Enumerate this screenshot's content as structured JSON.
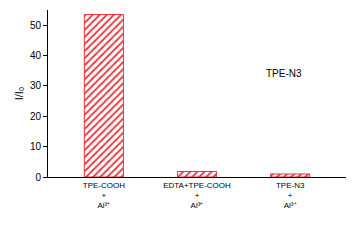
{
  "chart_data": {
    "type": "bar",
    "y_label": "I/I₀",
    "categories": [
      "TPE-COOH\n+\nAl³⁺",
      "EDTA+TPE-COOH\n+\nAl³⁺",
      "TPE-N3\n+\nAl³⁺"
    ],
    "values": [
      53.5,
      1.8,
      1.0
    ],
    "color": "#e8333c",
    "marker": "hatched",
    "ylim": [
      0,
      55
    ],
    "yticks": [
      0,
      10,
      20,
      30,
      40,
      50
    ],
    "grid": false,
    "annotations": [
      "TPE-N3"
    ]
  }
}
